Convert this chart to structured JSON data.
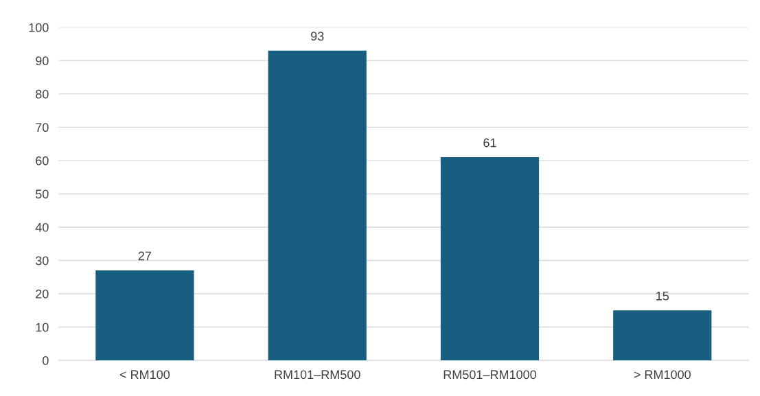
{
  "chart_data": {
    "type": "bar",
    "categories": [
      "< RM100",
      "RM101–RM500",
      "RM501–RM1000",
      "> RM1000"
    ],
    "values": [
      27,
      93,
      61,
      15
    ],
    "color": "#175e80",
    "ylim": [
      0,
      100
    ],
    "yticks": [
      0,
      10,
      20,
      30,
      40,
      50,
      60,
      70,
      80,
      90,
      100
    ],
    "grid": "y",
    "data_labels": true
  }
}
